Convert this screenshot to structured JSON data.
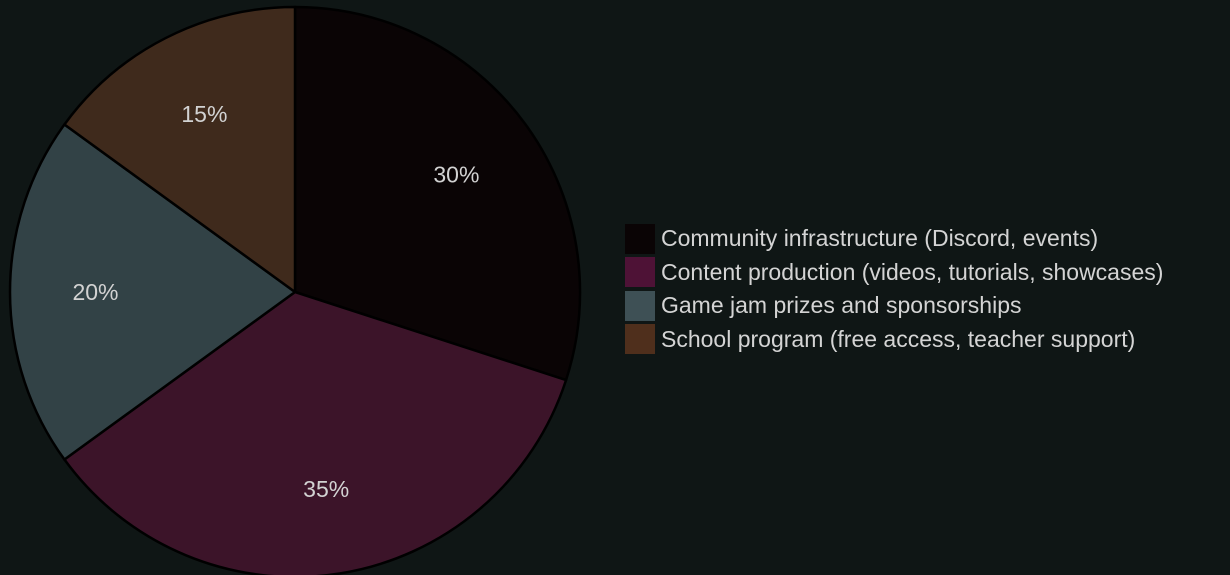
{
  "chart_data": {
    "type": "pie",
    "slices": [
      {
        "label": "Community infrastructure (Discord, events)",
        "value": 30,
        "display": "30%",
        "color": "#0a0405",
        "legend_color": "#0a0405"
      },
      {
        "label": "Content production (videos, tutorials, showcases)",
        "value": 35,
        "display": "35%",
        "color": "#3c1429",
        "legend_color": "#4e1236"
      },
      {
        "label": "Game jam prizes and sponsorships",
        "value": 20,
        "display": "20%",
        "color": "#324246",
        "legend_color": "#3e5055"
      },
      {
        "label": "School program (free access, teacher support)",
        "value": 15,
        "display": "15%",
        "color": "#3f2a1c",
        "legend_color": "#4f2f1c"
      }
    ],
    "start_angle": "12 o'clock",
    "direction": "clockwise",
    "legend_position": "right",
    "title": ""
  }
}
